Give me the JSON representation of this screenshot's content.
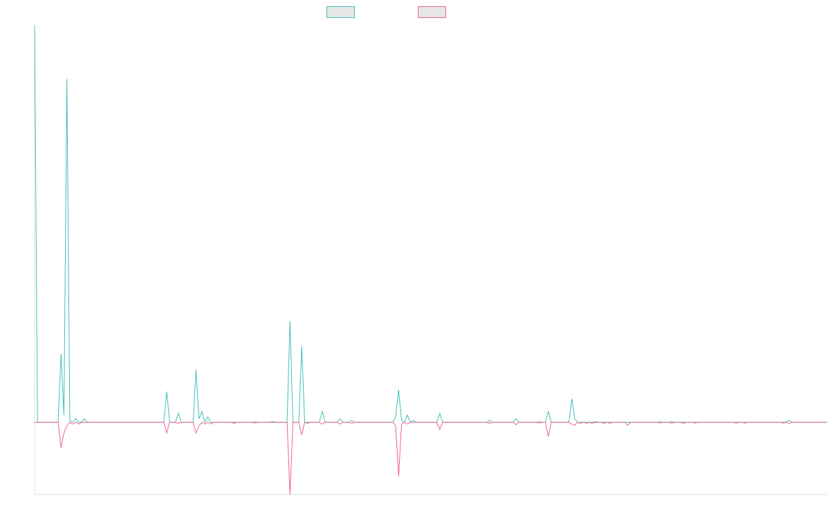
{
  "chart_data": {
    "type": "line",
    "title": "",
    "xlabel": "",
    "ylabel": "",
    "ylim": [
      -20,
      110
    ],
    "grid": false,
    "legend": "top-center",
    "series": [
      {
        "color": "#3fbfb8",
        "fill": "#e6e6e6",
        "points": [
          [
            0,
            110
          ],
          [
            1,
            0
          ],
          [
            8,
            0
          ],
          [
            9,
            19
          ],
          [
            10,
            2
          ],
          [
            11,
            95
          ],
          [
            12,
            0.5
          ],
          [
            13,
            0
          ],
          [
            14,
            1
          ],
          [
            15,
            0
          ],
          [
            16,
            0
          ],
          [
            17,
            1
          ],
          [
            18,
            0
          ],
          [
            44,
            0
          ],
          [
            45,
            8.5
          ],
          [
            46,
            0
          ],
          [
            48,
            0
          ],
          [
            49,
            2.5
          ],
          [
            50,
            0
          ],
          [
            54,
            0
          ],
          [
            55,
            14.5
          ],
          [
            56,
            1
          ],
          [
            57,
            3
          ],
          [
            58,
            0
          ],
          [
            59,
            1.5
          ],
          [
            60,
            0
          ],
          [
            61,
            0
          ],
          [
            74,
            0
          ],
          [
            75,
            0.2
          ],
          [
            76,
            0
          ],
          [
            80,
            0
          ],
          [
            81,
            0.2
          ],
          [
            82,
            0
          ],
          [
            86,
            0
          ],
          [
            87,
            28
          ],
          [
            88,
            0
          ],
          [
            90,
            0
          ],
          [
            91,
            21
          ],
          [
            92,
            0
          ],
          [
            93,
            0
          ],
          [
            97,
            0
          ],
          [
            98,
            3
          ],
          [
            99,
            0
          ],
          [
            103,
            0
          ],
          [
            104,
            1
          ],
          [
            105,
            0
          ],
          [
            107,
            0
          ],
          [
            108,
            0.5
          ],
          [
            109,
            0
          ],
          [
            122,
            0
          ],
          [
            123,
            1.5
          ],
          [
            124,
            9
          ],
          [
            125,
            0.5
          ],
          [
            126,
            0
          ],
          [
            127,
            2
          ],
          [
            128,
            0
          ],
          [
            129,
            0.5
          ],
          [
            130,
            0
          ],
          [
            137,
            0
          ],
          [
            138,
            2.5
          ],
          [
            139,
            0
          ],
          [
            154,
            0
          ],
          [
            155,
            0.5
          ],
          [
            156,
            0
          ],
          [
            163,
            0
          ],
          [
            164,
            1
          ],
          [
            165,
            0
          ],
          [
            171,
            0
          ],
          [
            172,
            0.2
          ],
          [
            173,
            0
          ],
          [
            174,
            0
          ],
          [
            175,
            3
          ],
          [
            176,
            0
          ],
          [
            182,
            0
          ],
          [
            183,
            6.5
          ],
          [
            184,
            1
          ],
          [
            185,
            0
          ],
          [
            190,
            0
          ],
          [
            191,
            0.2
          ],
          [
            192,
            0
          ],
          [
            193,
            0
          ],
          [
            212,
            0
          ],
          [
            213,
            0.2
          ],
          [
            214,
            0
          ],
          [
            216,
            0
          ],
          [
            217,
            0.2
          ],
          [
            218,
            0
          ],
          [
            256,
            0
          ],
          [
            257,
            0.5
          ],
          [
            258,
            0
          ],
          [
            270,
            0
          ]
        ]
      },
      {
        "color": "#f0608a",
        "fill": "#e6e6e6",
        "points": [
          [
            0,
            0
          ],
          [
            8,
            0
          ],
          [
            9,
            -7
          ],
          [
            10,
            -3
          ],
          [
            11,
            -1
          ],
          [
            12,
            0
          ],
          [
            13,
            -0.5
          ],
          [
            14,
            0
          ],
          [
            15,
            -0.5
          ],
          [
            16,
            0
          ],
          [
            44,
            0
          ],
          [
            45,
            -3
          ],
          [
            46,
            0
          ],
          [
            48,
            0
          ],
          [
            49,
            -0.3
          ],
          [
            50,
            0
          ],
          [
            54,
            0
          ],
          [
            55,
            -3
          ],
          [
            56,
            -1
          ],
          [
            57,
            0
          ],
          [
            58,
            -0.5
          ],
          [
            59,
            0
          ],
          [
            60,
            -0.5
          ],
          [
            61,
            0
          ],
          [
            67,
            0
          ],
          [
            68,
            -0.3
          ],
          [
            69,
            0
          ],
          [
            74,
            0
          ],
          [
            75,
            -0.2
          ],
          [
            76,
            0
          ],
          [
            86,
            0
          ],
          [
            87,
            -20
          ],
          [
            88,
            0
          ],
          [
            90,
            0
          ],
          [
            91,
            -3.5
          ],
          [
            92,
            0
          ],
          [
            93,
            -0.3
          ],
          [
            94,
            0
          ],
          [
            97,
            0
          ],
          [
            98,
            -0.5
          ],
          [
            99,
            0
          ],
          [
            103,
            0
          ],
          [
            104,
            -0.5
          ],
          [
            105,
            0
          ],
          [
            107,
            0
          ],
          [
            108,
            -0.3
          ],
          [
            109,
            0
          ],
          [
            122,
            0
          ],
          [
            123,
            -1
          ],
          [
            124,
            -15
          ],
          [
            125,
            -0.5
          ],
          [
            126,
            0
          ],
          [
            127,
            -0.5
          ],
          [
            128,
            0
          ],
          [
            137,
            0
          ],
          [
            138,
            -2
          ],
          [
            139,
            0
          ],
          [
            154,
            0
          ],
          [
            155,
            -0.3
          ],
          [
            156,
            0
          ],
          [
            163,
            0
          ],
          [
            164,
            -0.7
          ],
          [
            165,
            0
          ],
          [
            171,
            0
          ],
          [
            172,
            -0.2
          ],
          [
            173,
            0
          ],
          [
            174,
            0
          ],
          [
            175,
            -4
          ],
          [
            176,
            0
          ],
          [
            182,
            0
          ],
          [
            183,
            -0.5
          ],
          [
            184,
            -0.8
          ],
          [
            185,
            0
          ],
          [
            186,
            -0.3
          ],
          [
            187,
            0
          ],
          [
            188,
            -0.3
          ],
          [
            189,
            0
          ],
          [
            190,
            -0.3
          ],
          [
            191,
            0
          ],
          [
            193,
            0
          ],
          [
            194,
            -0.3
          ],
          [
            195,
            0
          ],
          [
            196,
            -0.3
          ],
          [
            197,
            0
          ],
          [
            201,
            0
          ],
          [
            202,
            -0.8
          ],
          [
            203,
            0
          ],
          [
            212,
            0
          ],
          [
            213,
            -0.2
          ],
          [
            214,
            0
          ],
          [
            216,
            0
          ],
          [
            217,
            -0.3
          ],
          [
            218,
            0
          ],
          [
            220,
            0
          ],
          [
            221,
            -0.3
          ],
          [
            222,
            0
          ],
          [
            224,
            0
          ],
          [
            225,
            -0.2
          ],
          [
            226,
            0
          ],
          [
            238,
            0
          ],
          [
            239,
            -0.2
          ],
          [
            240,
            0
          ],
          [
            241,
            0
          ],
          [
            242,
            -0.2
          ],
          [
            243,
            0
          ],
          [
            254,
            0
          ],
          [
            255,
            -0.2
          ],
          [
            256,
            0
          ],
          [
            257,
            -0.3
          ],
          [
            258,
            0
          ],
          [
            270,
            0
          ]
        ]
      }
    ]
  }
}
